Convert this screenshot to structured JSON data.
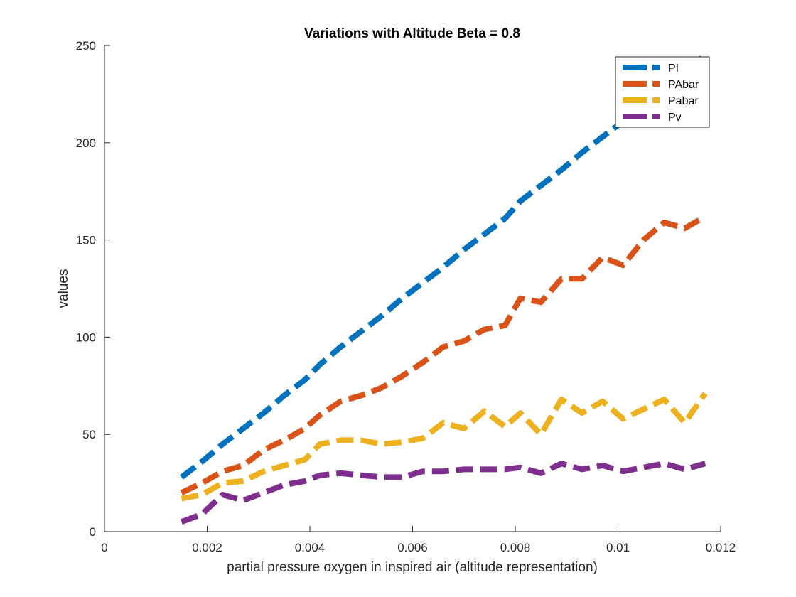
{
  "chart_data": {
    "type": "line",
    "title": "Variations with Altitude Beta = 0.8",
    "xlabel": "partial pressure oxygen in inspired air (altitude representation)",
    "ylabel": "values",
    "xlim": [
      0,
      0.012
    ],
    "ylim": [
      0,
      250
    ],
    "xticks": [
      0,
      0.002,
      0.004,
      0.006,
      0.008,
      0.01,
      0.012
    ],
    "xtick_labels": [
      "0",
      "0.002",
      "0.004",
      "0.006",
      "0.008",
      "0.01",
      "0.012"
    ],
    "yticks": [
      0,
      50,
      100,
      150,
      200,
      250
    ],
    "ytick_labels": [
      "0",
      "50",
      "100",
      "150",
      "200",
      "250"
    ],
    "grid": false,
    "legend_position": "top-right",
    "line_style": "dashed",
    "x": [
      0.0015,
      0.0019,
      0.0023,
      0.0027,
      0.0031,
      0.0035,
      0.0039,
      0.0042,
      0.0046,
      0.005,
      0.0054,
      0.0058,
      0.0062,
      0.0066,
      0.007,
      0.0074,
      0.0078,
      0.0081,
      0.0085,
      0.0089,
      0.0093,
      0.0097,
      0.0101,
      0.0105,
      0.0109,
      0.0113,
      0.0117
    ],
    "series": [
      {
        "name": "PI",
        "color": "#0072BD",
        "values": [
          28,
          36,
          45,
          53,
          61,
          70,
          78,
          86,
          95,
          103,
          111,
          120,
          128,
          136,
          145,
          153,
          161,
          170,
          178,
          186,
          195,
          203,
          211,
          220,
          228,
          236,
          245
        ]
      },
      {
        "name": "PAbar",
        "color": "#D95319",
        "values": [
          20,
          25,
          31,
          34,
          42,
          47,
          53,
          60,
          67,
          70,
          74,
          80,
          87,
          95,
          98,
          104,
          106,
          120,
          118,
          130,
          130,
          141,
          137,
          150,
          159,
          156,
          162
        ]
      },
      {
        "name": "Pabar",
        "color": "#EDB120",
        "values": [
          17,
          19,
          25,
          26,
          31,
          34,
          37,
          45,
          47,
          47,
          45,
          46,
          48,
          56,
          53,
          62,
          54,
          61,
          50,
          68,
          61,
          67,
          58,
          63,
          68,
          56,
          71
        ]
      },
      {
        "name": "Pv",
        "color": "#7E2F8E",
        "values": [
          5,
          9,
          19,
          16,
          20,
          24,
          26,
          29,
          30,
          29,
          28,
          28,
          31,
          31,
          32,
          32,
          32,
          33,
          30,
          35,
          32,
          34,
          31,
          33,
          35,
          32,
          35
        ]
      }
    ]
  }
}
